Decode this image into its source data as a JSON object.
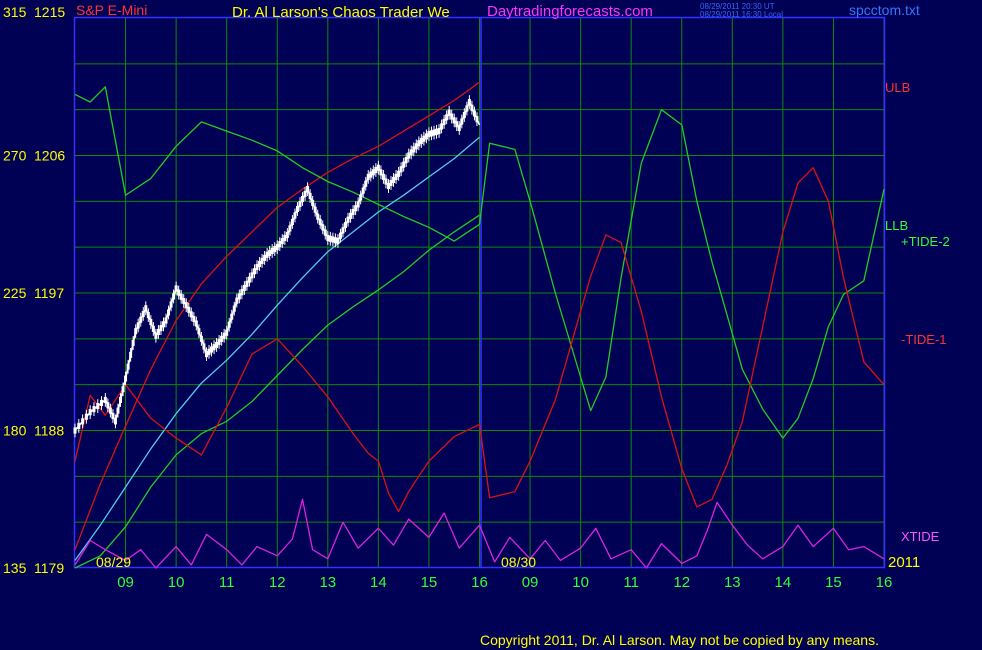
{
  "header": {
    "instrument": "S&P E-Mini",
    "title": "Dr. Al Larson's Chaos Trader We",
    "website": "Daytradingforecasts.com",
    "timestamp_ut": "08/29/2011 20:30 UT",
    "timestamp_local": "08/29/2011 16:30 Local",
    "filename": "spcctom.txt"
  },
  "footer": {
    "copyright": "Copyright 2011, Dr. Al Larson. May not be copied by any means."
  },
  "colors": {
    "background": "#000055",
    "grid": "#0a8a0a",
    "frame": "#3333ff",
    "price": "#ffffff",
    "ulb": "#dd1111",
    "llb": "#22cc22",
    "lower_band": "#55ccee",
    "tide_plus": "#22cc22",
    "tide_minus": "#dd1111",
    "xtide": "#dd22dd",
    "y_labels": "#ffff00",
    "x_labels": "#33ff33",
    "date_labels": "#ffff00"
  },
  "chart_data": {
    "type": "line",
    "title": "S&P E-Mini",
    "y_axis_left": {
      "tick_labels": [
        "315",
        "270",
        "225",
        "180",
        "135"
      ],
      "values": [
        315,
        270,
        225,
        180,
        135
      ]
    },
    "y_axis_price": {
      "tick_labels": [
        "1215",
        "1206",
        "1197",
        "1188",
        "1179"
      ],
      "values": [
        1215,
        1206,
        1197,
        1188,
        1179
      ],
      "ylim": [
        1179,
        1215
      ]
    },
    "x_axis": {
      "hour_labels": [
        "09",
        "10",
        "11",
        "12",
        "13",
        "14",
        "15",
        "16",
        "09",
        "10",
        "11",
        "12",
        "13",
        "14",
        "15",
        "16"
      ],
      "date_labels": [
        "08/29",
        "08/30"
      ],
      "year_label": "2011"
    },
    "legend": {
      "ulb": "ULB",
      "llb": "LLB",
      "tide_plus": "+TIDE-2",
      "tide_minus": "-TIDE-1",
      "xtide": "XTIDE"
    },
    "series": [
      {
        "name": "ULB",
        "x": [
          8.0,
          8.5,
          9.0,
          9.5,
          10.0,
          10.5,
          11.0,
          11.5,
          12.0,
          12.5,
          13.0,
          13.5,
          14.0,
          14.5,
          15.0,
          15.5,
          16.0
        ],
        "values": [
          1180.2,
          1184.5,
          1188.3,
          1192.0,
          1195.2,
          1197.6,
          1199.4,
          1201.0,
          1202.6,
          1203.8,
          1204.9,
          1205.8,
          1206.6,
          1207.6,
          1208.6,
          1209.6,
          1210.8
        ]
      },
      {
        "name": "LLB",
        "x": [
          8.0,
          8.5,
          9.0,
          9.5,
          10.0,
          10.5,
          11.0,
          11.5,
          12.0,
          12.5,
          13.0,
          13.5,
          14.0,
          14.5,
          15.0,
          15.5,
          16.0
        ],
        "values": [
          1179.0,
          1179.8,
          1181.7,
          1184.3,
          1186.4,
          1187.8,
          1188.6,
          1189.9,
          1191.6,
          1193.3,
          1194.9,
          1196.1,
          1197.2,
          1198.4,
          1199.8,
          1201.0,
          1202.1
        ]
      },
      {
        "name": "Lower band",
        "x": [
          8.0,
          8.5,
          9.0,
          9.5,
          10.0,
          10.5,
          11.0,
          11.5,
          12.0,
          12.5,
          13.0,
          13.5,
          14.0,
          14.5,
          15.0,
          15.5,
          16.0
        ],
        "values": [
          1179.5,
          1181.8,
          1184.3,
          1186.8,
          1189.1,
          1191.1,
          1192.6,
          1194.3,
          1196.2,
          1198.0,
          1199.7,
          1201.0,
          1202.3,
          1203.4,
          1204.6,
          1205.8,
          1207.2
        ]
      },
      {
        "name": "Price",
        "x": [
          8.0,
          8.3,
          8.6,
          8.8,
          9.0,
          9.2,
          9.4,
          9.6,
          9.8,
          10.0,
          10.2,
          10.4,
          10.6,
          10.8,
          11.0,
          11.2,
          11.4,
          11.6,
          11.8,
          12.0,
          12.2,
          12.4,
          12.6,
          12.8,
          13.0,
          13.2,
          13.4,
          13.6,
          13.8,
          14.0,
          14.2,
          14.4,
          14.6,
          14.8,
          15.0,
          15.2,
          15.4,
          15.6,
          15.8,
          16.0
        ],
        "values": [
          1188.0,
          1189.2,
          1190.0,
          1188.6,
          1191.4,
          1194.5,
          1196.0,
          1194.2,
          1195.2,
          1197.3,
          1196.2,
          1195.0,
          1193.0,
          1193.6,
          1194.4,
          1196.5,
          1197.6,
          1198.7,
          1199.5,
          1200.0,
          1200.8,
          1202.5,
          1203.8,
          1202.0,
          1200.6,
          1200.4,
          1201.8,
          1202.8,
          1204.6,
          1205.2,
          1204.0,
          1204.8,
          1206.0,
          1206.8,
          1207.4,
          1207.6,
          1208.8,
          1207.8,
          1209.5,
          1208.0
        ]
      },
      {
        "name": "+TIDE-2",
        "x": [
          8.0,
          8.3,
          8.6,
          9.0,
          9.5,
          10.0,
          10.5,
          11.0,
          11.5,
          12.0,
          12.5,
          13.0,
          13.5,
          14.0,
          14.5,
          15.0,
          15.5,
          16.0,
          16.2,
          16.7,
          17.0,
          17.5,
          18.0,
          18.2,
          18.5,
          18.8,
          19.2,
          19.6,
          20.0,
          20.3,
          20.6,
          20.9,
          21.2,
          21.6,
          22.0,
          22.3,
          22.6,
          22.9,
          23.2,
          23.6,
          24.0
        ],
        "values": [
          1210.0,
          1209.5,
          1210.5,
          1203.4,
          1204.5,
          1206.6,
          1208.2,
          1207.6,
          1207.0,
          1206.3,
          1205.2,
          1204.3,
          1203.6,
          1202.8,
          1202.0,
          1201.3,
          1200.4,
          1201.5,
          1206.8,
          1206.4,
          1203.0,
          1197.0,
          1191.5,
          1189.3,
          1191.5,
          1198.0,
          1205.5,
          1209.0,
          1208.0,
          1203.0,
          1199.0,
          1195.5,
          1192.0,
          1189.4,
          1187.5,
          1188.8,
          1191.4,
          1194.8,
          1196.9,
          1197.8,
          1203.8
        ]
      },
      {
        "name": "-TIDE-1",
        "x": [
          8.0,
          8.3,
          8.6,
          9.0,
          9.5,
          10.0,
          10.5,
          11.0,
          11.5,
          12.0,
          12.5,
          13.0,
          13.5,
          13.8,
          14.0,
          14.2,
          14.4,
          14.6,
          14.8,
          15.0,
          15.5,
          16.0,
          16.2,
          16.7,
          17.0,
          17.5,
          18.0,
          18.2,
          18.5,
          18.8,
          19.2,
          19.6,
          20.0,
          20.3,
          20.6,
          20.9,
          21.2,
          21.6,
          22.0,
          22.3,
          22.6,
          22.9,
          23.2,
          23.6,
          24.0
        ],
        "values": [
          1186.0,
          1190.3,
          1189.0,
          1191.0,
          1188.8,
          1187.5,
          1186.4,
          1189.5,
          1193.0,
          1194.0,
          1192.2,
          1190.2,
          1187.8,
          1186.5,
          1186.0,
          1183.9,
          1182.7,
          1184.0,
          1185.0,
          1186.0,
          1187.6,
          1188.4,
          1183.6,
          1184.0,
          1186.0,
          1190.0,
          1195.8,
          1198.1,
          1200.8,
          1200.3,
          1195.8,
          1190.2,
          1185.5,
          1183.0,
          1183.5,
          1185.8,
          1188.6,
          1194.8,
          1201.0,
          1204.2,
          1205.2,
          1203.0,
          1198.0,
          1192.5,
          1191.0
        ]
      },
      {
        "name": "XTIDE",
        "x": [
          8.0,
          8.3,
          8.6,
          9.0,
          9.3,
          9.6,
          10.0,
          10.3,
          10.6,
          11.0,
          11.3,
          11.6,
          12.0,
          12.3,
          12.5,
          12.7,
          13.0,
          13.3,
          13.6,
          14.0,
          14.3,
          14.6,
          15.0,
          15.3,
          15.6,
          16.0,
          16.3,
          16.6,
          17.0,
          17.3,
          17.6,
          18.0,
          18.3,
          18.6,
          19.0,
          19.3,
          19.6,
          20.0,
          20.3,
          20.5,
          20.7,
          21.0,
          21.3,
          21.6,
          22.0,
          22.3,
          22.6,
          23.0,
          23.3,
          23.6,
          24.0
        ],
        "values": [
          1179.2,
          1180.8,
          1180.2,
          1179.5,
          1180.2,
          1179.0,
          1180.4,
          1179.2,
          1181.2,
          1180.2,
          1179.2,
          1180.4,
          1179.8,
          1180.9,
          1183.5,
          1180.2,
          1179.6,
          1182.0,
          1180.3,
          1181.6,
          1180.5,
          1182.2,
          1181.0,
          1182.6,
          1180.3,
          1181.8,
          1179.4,
          1181.0,
          1179.6,
          1180.8,
          1179.5,
          1180.3,
          1181.6,
          1179.6,
          1180.2,
          1179.0,
          1180.6,
          1179.3,
          1179.8,
          1181.4,
          1183.3,
          1181.8,
          1180.5,
          1179.6,
          1180.4,
          1181.8,
          1180.4,
          1181.6,
          1180.2,
          1180.4,
          1179.6
        ]
      }
    ]
  }
}
